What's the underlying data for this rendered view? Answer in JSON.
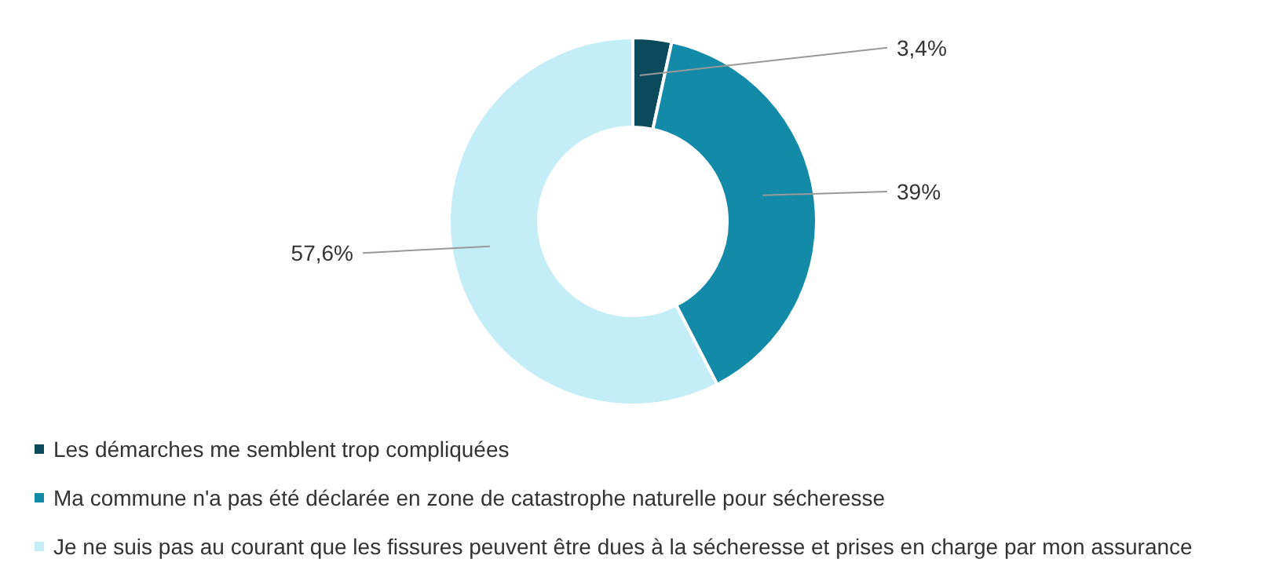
{
  "chart_data": {
    "type": "donut",
    "categories": [
      "Les démarches me semblent trop compliquées",
      "Ma commune n'a pas été déclarée en zone de catastrophe naturelle pour sécheresse",
      "Je ne suis pas au courant que les fissures peuvent être dues à la sécheresse et prises en charge par mon assurance"
    ],
    "values": [
      3.4,
      39,
      57.6
    ],
    "value_labels": [
      "3,4%",
      "39%",
      "57,6%"
    ],
    "colors": [
      "#0b4a5a",
      "#148aa9",
      "#c4eef7"
    ],
    "legend": "bottom"
  }
}
